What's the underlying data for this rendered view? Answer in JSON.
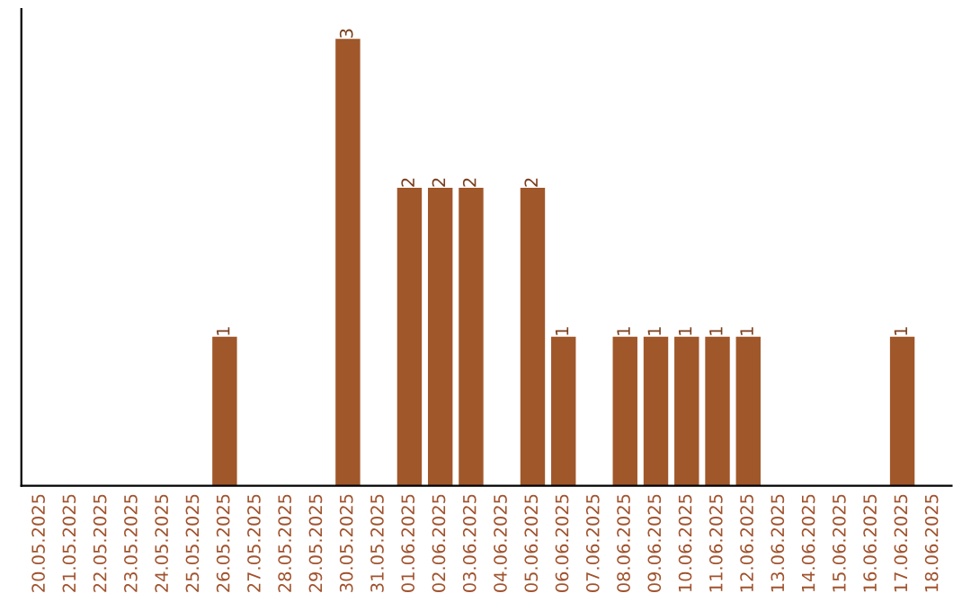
{
  "chart_data": {
    "type": "bar",
    "categories": [
      "20.05.2025",
      "21.05.2025",
      "22.05.2025",
      "23.05.2025",
      "24.05.2025",
      "25.05.2025",
      "26.05.2025",
      "27.05.2025",
      "28.05.2025",
      "29.05.2025",
      "30.05.2025",
      "31.05.2025",
      "01.06.2025",
      "02.06.2025",
      "03.06.2025",
      "04.06.2025",
      "05.06.2025",
      "06.06.2025",
      "07.06.2025",
      "08.06.2025",
      "09.06.2025",
      "10.06.2025",
      "11.06.2025",
      "12.06.2025",
      "13.06.2025",
      "14.06.2025",
      "15.06.2025",
      "16.06.2025",
      "17.06.2025",
      "18.06.2025"
    ],
    "values": [
      0,
      0,
      0,
      0,
      0,
      0,
      1,
      0,
      0,
      0,
      3,
      0,
      2,
      2,
      2,
      0,
      2,
      1,
      0,
      1,
      1,
      1,
      1,
      1,
      0,
      0,
      0,
      0,
      1,
      0
    ],
    "value_labels": [
      null,
      null,
      null,
      null,
      null,
      null,
      "1",
      null,
      null,
      null,
      "3",
      null,
      "2",
      "2",
      "2",
      null,
      "2",
      "1",
      null,
      "1",
      "1",
      "1",
      "1",
      "1",
      null,
      null,
      null,
      null,
      "1",
      null
    ],
    "color": "#a0572a",
    "ylim": [
      0,
      3.2
    ],
    "tick_labels": "x",
    "grid": false
  }
}
